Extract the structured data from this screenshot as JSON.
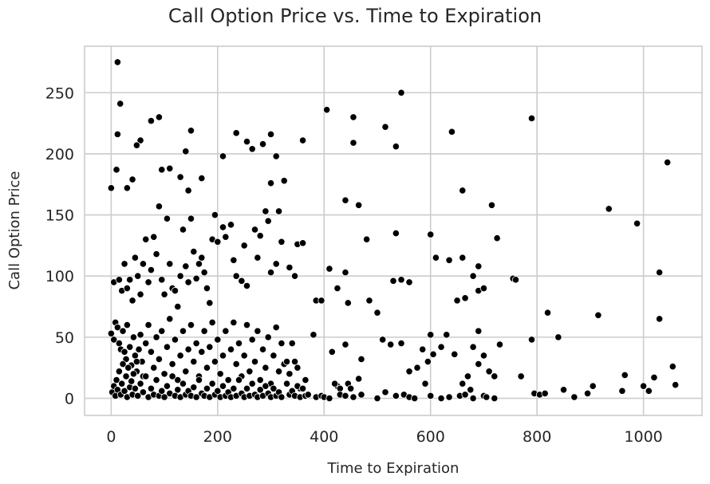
{
  "chart_data": {
    "type": "scatter",
    "title": "Call Option Price vs. Time to Expiration",
    "xlabel": "Time to Expiration",
    "ylabel": "Call Option Price",
    "xlim": [
      -50,
      1110
    ],
    "ylim": [
      -14,
      288
    ],
    "xticks": [
      0,
      200,
      400,
      600,
      800,
      1000
    ],
    "yticks": [
      0,
      50,
      100,
      150,
      200,
      250
    ],
    "grid": true,
    "marker_color": "#000000",
    "points": [
      [
        12,
        275
      ],
      [
        17,
        241
      ],
      [
        12,
        216
      ],
      [
        10,
        187
      ],
      [
        0,
        172
      ],
      [
        30,
        172
      ],
      [
        40,
        179
      ],
      [
        55,
        211
      ],
      [
        48,
        207
      ],
      [
        75,
        227
      ],
      [
        90,
        230
      ],
      [
        95,
        187
      ],
      [
        90,
        157
      ],
      [
        110,
        188
      ],
      [
        130,
        181
      ],
      [
        140,
        202
      ],
      [
        150,
        219
      ],
      [
        145,
        170
      ],
      [
        170,
        180
      ],
      [
        195,
        150
      ],
      [
        210,
        198
      ],
      [
        235,
        217
      ],
      [
        255,
        210
      ],
      [
        265,
        204
      ],
      [
        285,
        208
      ],
      [
        300,
        216
      ],
      [
        310,
        198
      ],
      [
        300,
        176
      ],
      [
        325,
        178
      ],
      [
        360,
        211
      ],
      [
        405,
        236
      ],
      [
        455,
        230
      ],
      [
        455,
        209
      ],
      [
        465,
        158
      ],
      [
        440,
        162
      ],
      [
        515,
        222
      ],
      [
        535,
        206
      ],
      [
        545,
        250
      ],
      [
        640,
        218
      ],
      [
        660,
        170
      ],
      [
        715,
        158
      ],
      [
        790,
        229
      ],
      [
        935,
        155
      ],
      [
        988,
        143
      ],
      [
        1030,
        103
      ],
      [
        1045,
        193
      ],
      [
        1030,
        65
      ],
      [
        5,
        95
      ],
      [
        15,
        97
      ],
      [
        20,
        88
      ],
      [
        25,
        110
      ],
      [
        30,
        90
      ],
      [
        35,
        97
      ],
      [
        40,
        80
      ],
      [
        45,
        115
      ],
      [
        50,
        100
      ],
      [
        55,
        85
      ],
      [
        60,
        110
      ],
      [
        65,
        130
      ],
      [
        70,
        95
      ],
      [
        75,
        105
      ],
      [
        80,
        132
      ],
      [
        85,
        118
      ],
      [
        95,
        97
      ],
      [
        100,
        85
      ],
      [
        105,
        147
      ],
      [
        110,
        110
      ],
      [
        115,
        90
      ],
      [
        120,
        88
      ],
      [
        125,
        75
      ],
      [
        130,
        100
      ],
      [
        135,
        138
      ],
      [
        140,
        108
      ],
      [
        145,
        95
      ],
      [
        150,
        147
      ],
      [
        155,
        120
      ],
      [
        160,
        98
      ],
      [
        165,
        110
      ],
      [
        170,
        115
      ],
      [
        175,
        103
      ],
      [
        180,
        90
      ],
      [
        185,
        78
      ],
      [
        190,
        130
      ],
      [
        200,
        128
      ],
      [
        210,
        140
      ],
      [
        215,
        132
      ],
      [
        225,
        142
      ],
      [
        230,
        113
      ],
      [
        235,
        100
      ],
      [
        245,
        96
      ],
      [
        250,
        125
      ],
      [
        255,
        92
      ],
      [
        270,
        138
      ],
      [
        275,
        115
      ],
      [
        280,
        133
      ],
      [
        290,
        153
      ],
      [
        295,
        145
      ],
      [
        300,
        103
      ],
      [
        310,
        110
      ],
      [
        315,
        153
      ],
      [
        320,
        128
      ],
      [
        335,
        107
      ],
      [
        345,
        100
      ],
      [
        350,
        126
      ],
      [
        360,
        127
      ],
      [
        385,
        80
      ],
      [
        395,
        80
      ],
      [
        410,
        106
      ],
      [
        425,
        90
      ],
      [
        440,
        103
      ],
      [
        445,
        78
      ],
      [
        480,
        130
      ],
      [
        485,
        80
      ],
      [
        500,
        70
      ],
      [
        530,
        96
      ],
      [
        535,
        135
      ],
      [
        545,
        97
      ],
      [
        560,
        95
      ],
      [
        600,
        134
      ],
      [
        610,
        115
      ],
      [
        635,
        113
      ],
      [
        650,
        80
      ],
      [
        660,
        115
      ],
      [
        665,
        82
      ],
      [
        680,
        100
      ],
      [
        690,
        108
      ],
      [
        690,
        88
      ],
      [
        700,
        90
      ],
      [
        725,
        131
      ],
      [
        755,
        98
      ],
      [
        760,
        97
      ],
      [
        820,
        70
      ],
      [
        915,
        68
      ],
      [
        0,
        53
      ],
      [
        5,
        48
      ],
      [
        8,
        62
      ],
      [
        12,
        58
      ],
      [
        15,
        45
      ],
      [
        18,
        40
      ],
      [
        22,
        55
      ],
      [
        25,
        38
      ],
      [
        28,
        32
      ],
      [
        30,
        60
      ],
      [
        35,
        42
      ],
      [
        38,
        27
      ],
      [
        42,
        50
      ],
      [
        45,
        35
      ],
      [
        48,
        22
      ],
      [
        52,
        40
      ],
      [
        55,
        52
      ],
      [
        58,
        30
      ],
      [
        60,
        18
      ],
      [
        65,
        45
      ],
      [
        70,
        60
      ],
      [
        75,
        38
      ],
      [
        80,
        25
      ],
      [
        85,
        50
      ],
      [
        90,
        32
      ],
      [
        95,
        55
      ],
      [
        100,
        20
      ],
      [
        105,
        42
      ],
      [
        110,
        65
      ],
      [
        115,
        28
      ],
      [
        120,
        48
      ],
      [
        125,
        15
      ],
      [
        130,
        35
      ],
      [
        135,
        55
      ],
      [
        140,
        22
      ],
      [
        145,
        40
      ],
      [
        150,
        60
      ],
      [
        155,
        30
      ],
      [
        160,
        45
      ],
      [
        165,
        18
      ],
      [
        170,
        38
      ],
      [
        175,
        55
      ],
      [
        180,
        25
      ],
      [
        185,
        42
      ],
      [
        190,
        62
      ],
      [
        195,
        30
      ],
      [
        200,
        48
      ],
      [
        205,
        20
      ],
      [
        210,
        35
      ],
      [
        215,
        55
      ],
      [
        220,
        15
      ],
      [
        225,
        40
      ],
      [
        230,
        62
      ],
      [
        235,
        28
      ],
      [
        240,
        45
      ],
      [
        245,
        18
      ],
      [
        250,
        35
      ],
      [
        255,
        60
      ],
      [
        260,
        22
      ],
      [
        265,
        48
      ],
      [
        270,
        30
      ],
      [
        275,
        55
      ],
      [
        280,
        15
      ],
      [
        285,
        40
      ],
      [
        290,
        25
      ],
      [
        295,
        50
      ],
      [
        300,
        12
      ],
      [
        305,
        35
      ],
      [
        310,
        58
      ],
      [
        315,
        22
      ],
      [
        320,
        45
      ],
      [
        325,
        28
      ],
      [
        330,
        30
      ],
      [
        335,
        20
      ],
      [
        340,
        45
      ],
      [
        345,
        30
      ],
      [
        350,
        25
      ],
      [
        355,
        8
      ],
      [
        365,
        15
      ],
      [
        380,
        52
      ],
      [
        415,
        38
      ],
      [
        425,
        10
      ],
      [
        430,
        8
      ],
      [
        440,
        44
      ],
      [
        445,
        12
      ],
      [
        450,
        8
      ],
      [
        465,
        16
      ],
      [
        470,
        32
      ],
      [
        510,
        48
      ],
      [
        525,
        44
      ],
      [
        545,
        45
      ],
      [
        560,
        22
      ],
      [
        575,
        25
      ],
      [
        585,
        40
      ],
      [
        590,
        12
      ],
      [
        595,
        30
      ],
      [
        600,
        52
      ],
      [
        605,
        36
      ],
      [
        620,
        42
      ],
      [
        630,
        52
      ],
      [
        645,
        36
      ],
      [
        660,
        12
      ],
      [
        670,
        18
      ],
      [
        680,
        42
      ],
      [
        690,
        55
      ],
      [
        690,
        28
      ],
      [
        700,
        35
      ],
      [
        710,
        22
      ],
      [
        720,
        18
      ],
      [
        730,
        44
      ],
      [
        770,
        18
      ],
      [
        790,
        48
      ],
      [
        840,
        50
      ],
      [
        965,
        19
      ],
      [
        1020,
        17
      ],
      [
        1055,
        26
      ],
      [
        2,
        5
      ],
      [
        5,
        10
      ],
      [
        8,
        2
      ],
      [
        10,
        15
      ],
      [
        12,
        7
      ],
      [
        15,
        22
      ],
      [
        18,
        3
      ],
      [
        20,
        12
      ],
      [
        22,
        28
      ],
      [
        25,
        6
      ],
      [
        28,
        18
      ],
      [
        30,
        1
      ],
      [
        32,
        25
      ],
      [
        35,
        9
      ],
      [
        38,
        14
      ],
      [
        40,
        3
      ],
      [
        42,
        20
      ],
      [
        45,
        8
      ],
      [
        48,
        30
      ],
      [
        50,
        2
      ],
      [
        55,
        12
      ],
      [
        60,
        5
      ],
      [
        65,
        18
      ],
      [
        70,
        1
      ],
      [
        75,
        8
      ],
      [
        80,
        3
      ],
      [
        85,
        15
      ],
      [
        90,
        2
      ],
      [
        95,
        6
      ],
      [
        100,
        1
      ],
      [
        105,
        10
      ],
      [
        110,
        4
      ],
      [
        115,
        18
      ],
      [
        120,
        2
      ],
      [
        125,
        7
      ],
      [
        130,
        1
      ],
      [
        135,
        12
      ],
      [
        140,
        3
      ],
      [
        145,
        6
      ],
      [
        150,
        2
      ],
      [
        155,
        9
      ],
      [
        160,
        1
      ],
      [
        165,
        15
      ],
      [
        170,
        4
      ],
      [
        175,
        2
      ],
      [
        180,
        8
      ],
      [
        185,
        1
      ],
      [
        190,
        12
      ],
      [
        195,
        3
      ],
      [
        200,
        6
      ],
      [
        205,
        1
      ],
      [
        210,
        10
      ],
      [
        215,
        2
      ],
      [
        220,
        5
      ],
      [
        225,
        1
      ],
      [
        230,
        8
      ],
      [
        235,
        2
      ],
      [
        240,
        15
      ],
      [
        245,
        4
      ],
      [
        250,
        1
      ],
      [
        255,
        8
      ],
      [
        260,
        2
      ],
      [
        265,
        12
      ],
      [
        270,
        3
      ],
      [
        275,
        1
      ],
      [
        280,
        7
      ],
      [
        285,
        2
      ],
      [
        290,
        10
      ],
      [
        295,
        4
      ],
      [
        300,
        1
      ],
      [
        305,
        8
      ],
      [
        310,
        2
      ],
      [
        315,
        5
      ],
      [
        320,
        1
      ],
      [
        330,
        12
      ],
      [
        335,
        3
      ],
      [
        340,
        6
      ],
      [
        345,
        2
      ],
      [
        350,
        10
      ],
      [
        355,
        1
      ],
      [
        360,
        8
      ],
      [
        365,
        2
      ],
      [
        370,
        3
      ],
      [
        385,
        1
      ],
      [
        395,
        2
      ],
      [
        400,
        1
      ],
      [
        410,
        0
      ],
      [
        420,
        12
      ],
      [
        430,
        3
      ],
      [
        440,
        2
      ],
      [
        455,
        1
      ],
      [
        470,
        3
      ],
      [
        500,
        0
      ],
      [
        515,
        5
      ],
      [
        535,
        2
      ],
      [
        550,
        3
      ],
      [
        560,
        1
      ],
      [
        570,
        0
      ],
      [
        600,
        2
      ],
      [
        620,
        0
      ],
      [
        635,
        1
      ],
      [
        655,
        2
      ],
      [
        665,
        3
      ],
      [
        675,
        7
      ],
      [
        680,
        0
      ],
      [
        700,
        2
      ],
      [
        705,
        1
      ],
      [
        720,
        0
      ],
      [
        795,
        4
      ],
      [
        805,
        3
      ],
      [
        815,
        4
      ],
      [
        850,
        7
      ],
      [
        870,
        1
      ],
      [
        895,
        4
      ],
      [
        905,
        10
      ],
      [
        960,
        6
      ],
      [
        1000,
        10
      ],
      [
        1010,
        6
      ],
      [
        1060,
        11
      ]
    ]
  }
}
